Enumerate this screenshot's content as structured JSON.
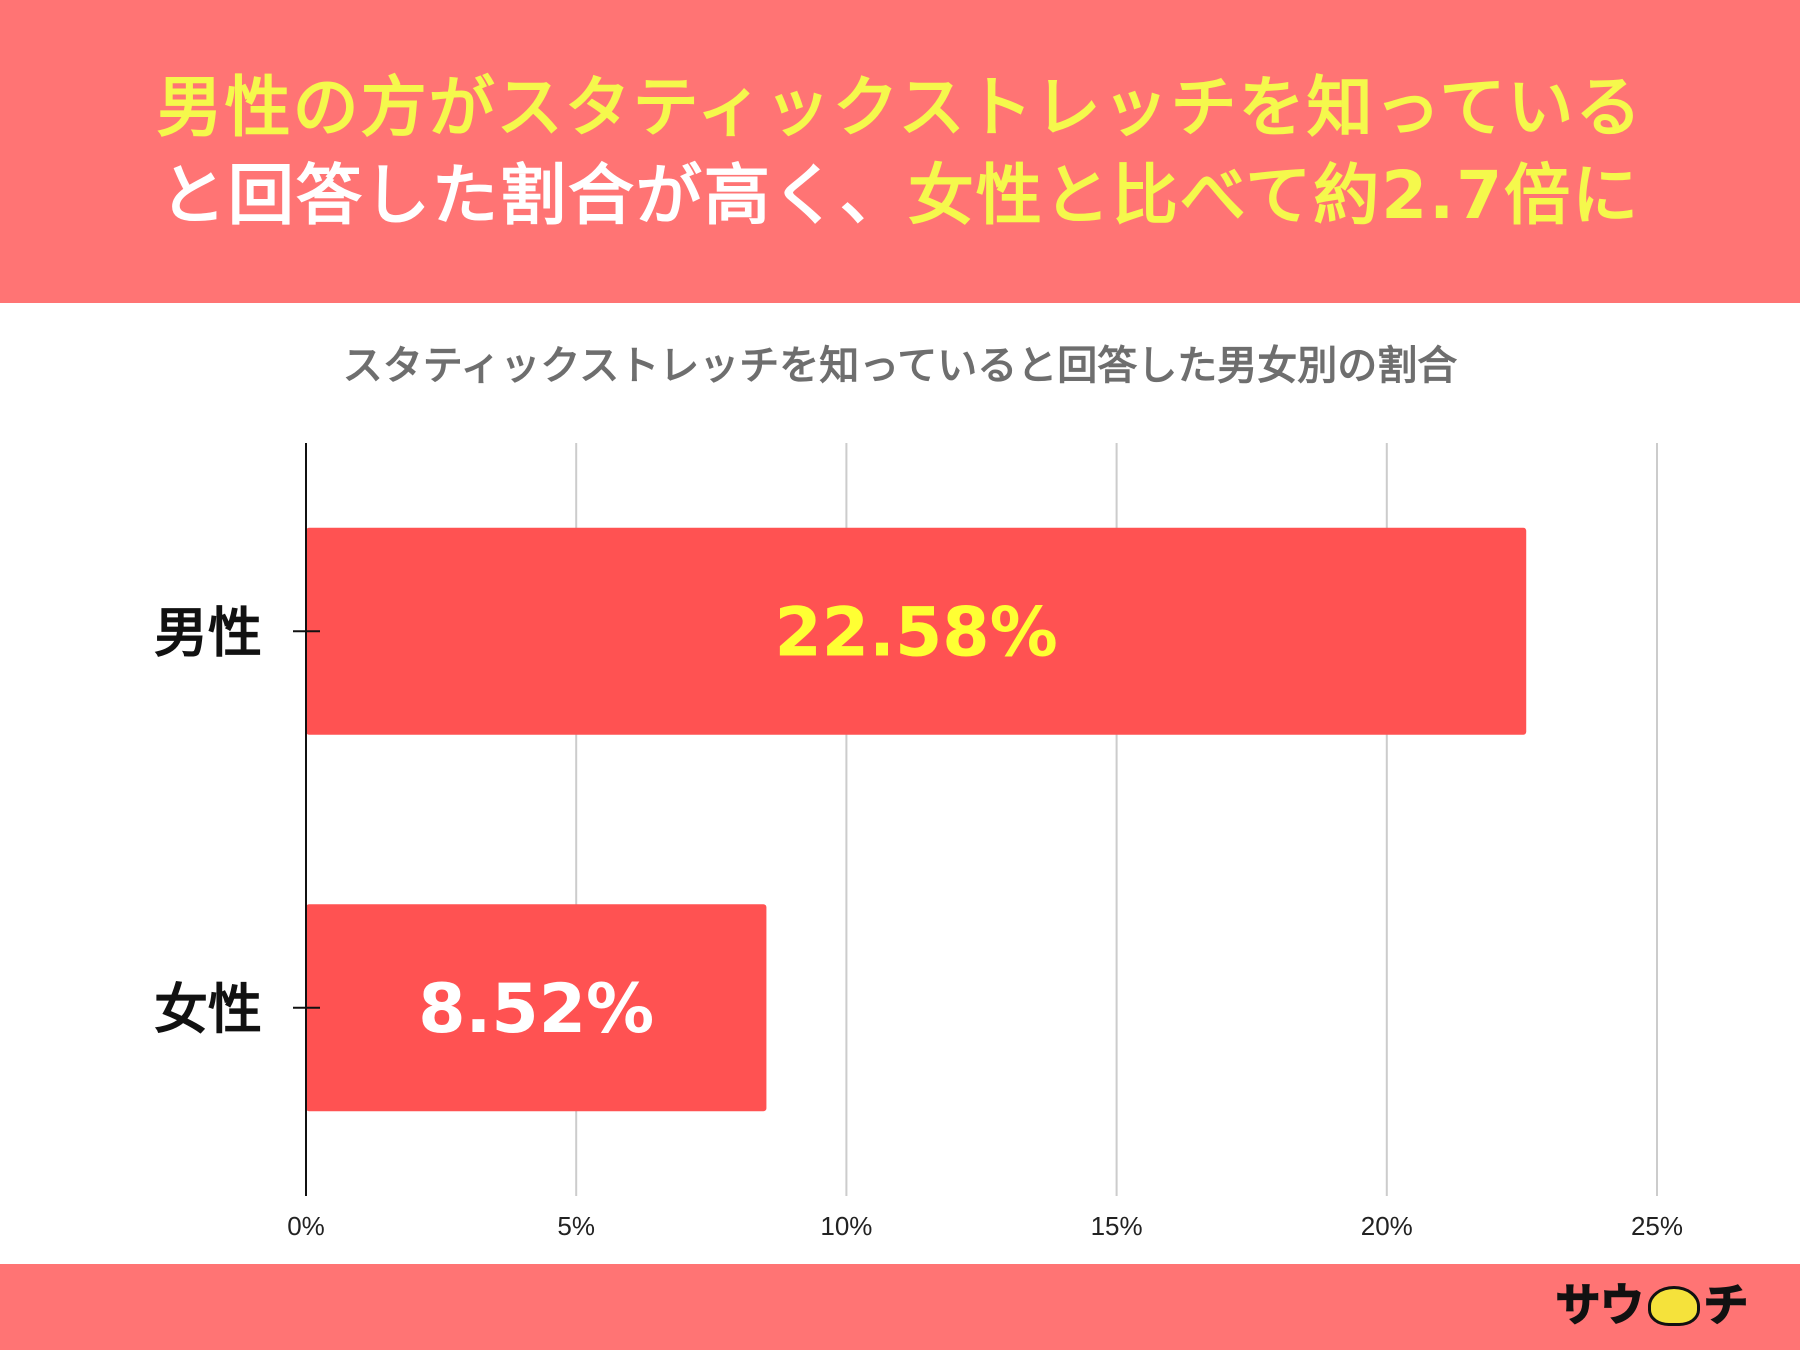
{
  "headline": {
    "line1_accent": "男性の方がスタティックストレッチを知っている",
    "line2_part1": "と回答した割合が高く、",
    "line2_accent": "女性と比べて約2.7倍に"
  },
  "chart_data": {
    "type": "bar",
    "orientation": "horizontal",
    "title": "スタティックストレッチを知っていると回答した男女別の割合",
    "categories": [
      "男性",
      "女性"
    ],
    "values": [
      22.58,
      8.52
    ],
    "data_labels": [
      "22.58%",
      "8.52%"
    ],
    "xlim": [
      0,
      25
    ],
    "x_ticks": [
      0,
      5,
      10,
      15,
      20,
      25
    ],
    "x_tick_labels": [
      "0%",
      "5%",
      "10%",
      "15%",
      "20%",
      "25%"
    ],
    "grid": true,
    "colors": {
      "bar": "#ff5252",
      "label_male": "#ffff33",
      "label_female": "#ffffff",
      "grid": "#cccccc",
      "axis": "#111111"
    }
  },
  "footer": {
    "logo_left": "サウ",
    "logo_right": "チ"
  },
  "colors": {
    "banner": "#ff7474",
    "headline_accent": "#f5f84c",
    "headline_white": "#ffffff",
    "title_gray": "#6e6e6e"
  }
}
